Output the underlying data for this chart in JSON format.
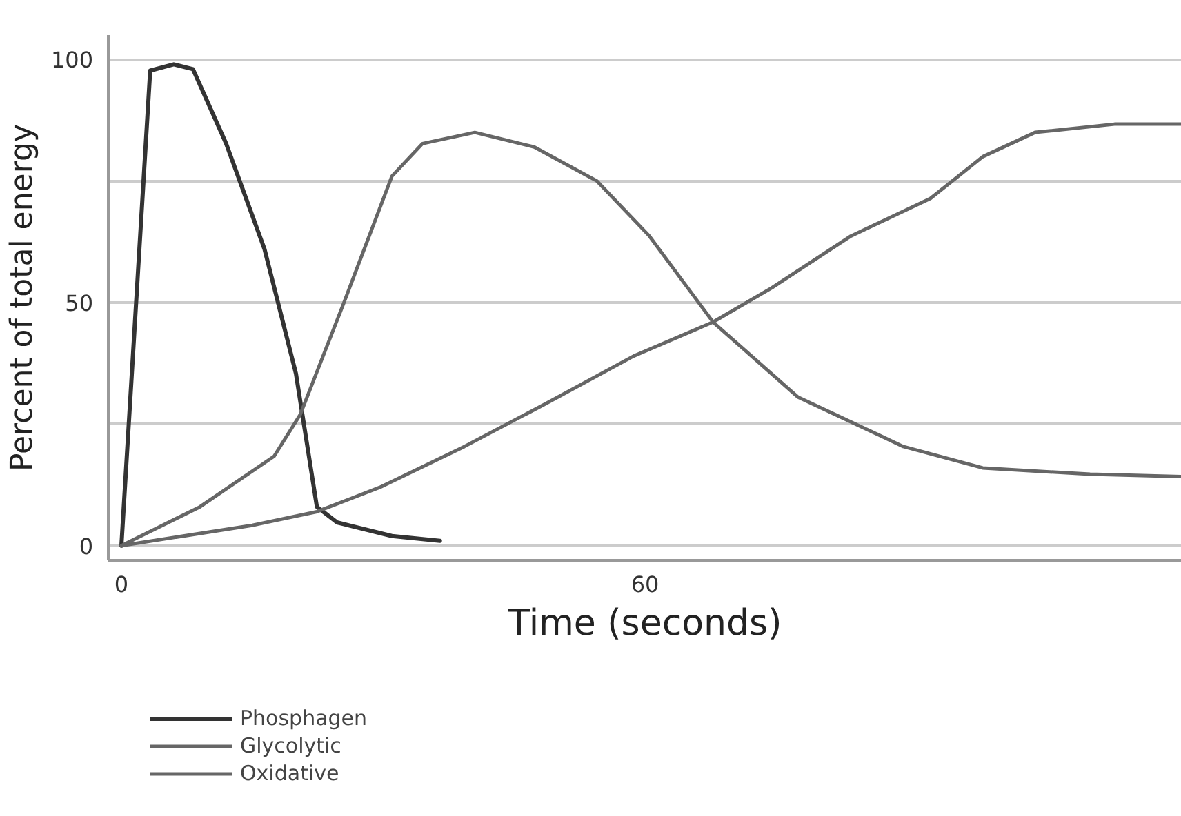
{
  "chart_data": {
    "type": "line",
    "xlabel": "Time (seconds)",
    "ylabel": "Percent of total energy",
    "xlim": [
      -1.5,
      121.5
    ],
    "ylim": [
      -3,
      105
    ],
    "xticks": [
      0,
      60
    ],
    "yticks": [
      0,
      {
        "value": 25,
        "label": null
      },
      50,
      {
        "value": 75,
        "label": null
      },
      100
    ],
    "grid": "y",
    "legend": "bottom",
    "line_style": "solid",
    "series": [
      {
        "name": "Phosphagen",
        "color": "#333333",
        "x": [
          0,
          3.3,
          6,
          8.2,
          12,
          16.4,
          20,
          22.4,
          24.7,
          31,
          36.5
        ],
        "values": [
          0,
          97.7,
          99,
          98,
          82.7,
          61,
          35.4,
          8,
          4.8,
          2,
          1
        ]
      },
      {
        "name": "Glycolytic",
        "color": "#666666",
        "x": [
          0,
          9,
          17.5,
          20.5,
          25.5,
          31,
          34.5,
          40.5,
          47.3,
          54.5,
          60.5,
          67.8,
          77.5,
          89.6,
          98.7,
          111,
          121.5
        ],
        "values": [
          0,
          8,
          18.4,
          27,
          50,
          76,
          82.7,
          85,
          82,
          75,
          63.7,
          46,
          30.6,
          20.4,
          16,
          14.7,
          14.2
        ]
      },
      {
        "name": "Oxidative",
        "color": "#666666",
        "x": [
          0,
          15,
          22.4,
          29.6,
          39.3,
          48.4,
          58.7,
          67.8,
          74.5,
          83.6,
          92.7,
          98.7,
          104.7,
          113.8,
          121.5
        ],
        "values": [
          0,
          4.2,
          7,
          12,
          20.4,
          29,
          39,
          46,
          53,
          63.7,
          71.4,
          80,
          85,
          86.7,
          86.7
        ]
      }
    ]
  }
}
